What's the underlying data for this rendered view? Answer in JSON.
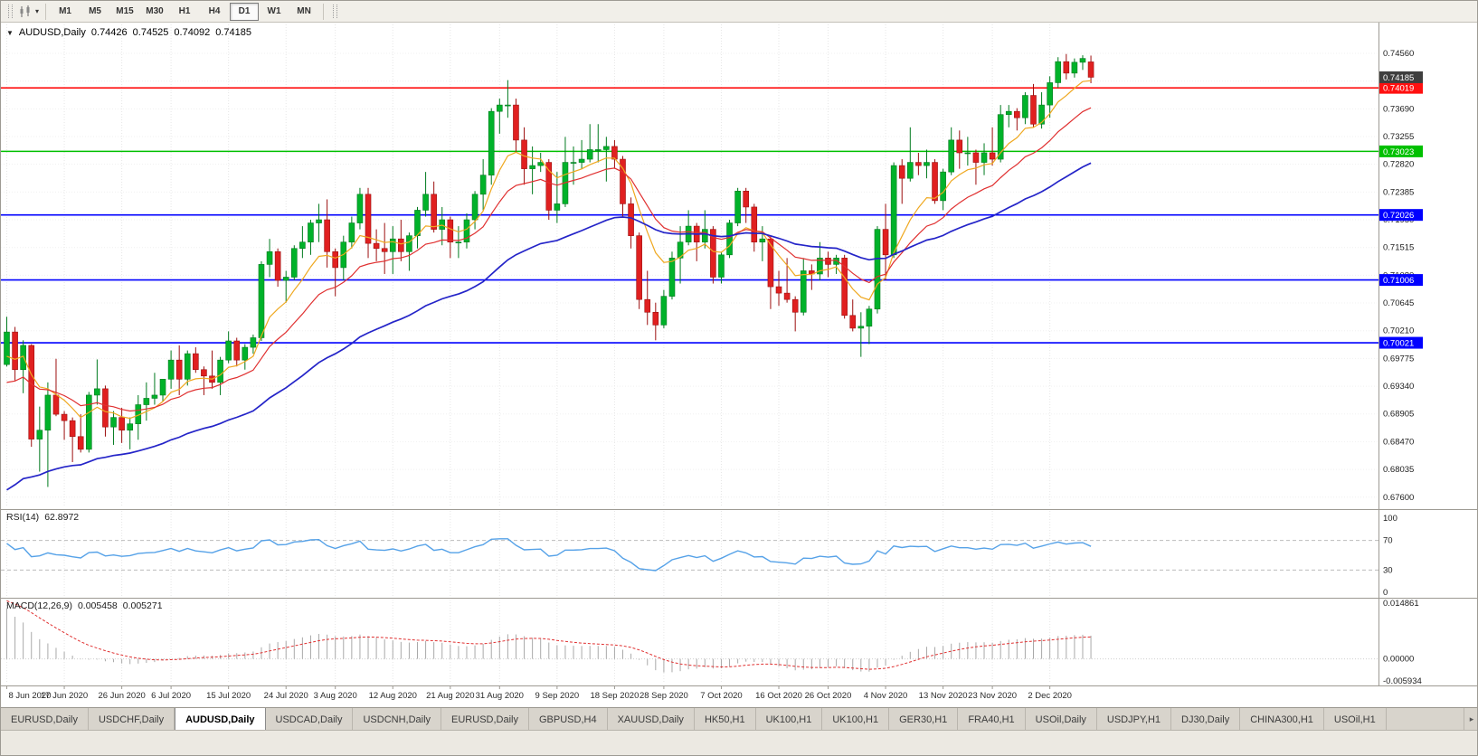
{
  "icons": {
    "collapse": "▼",
    "dropdown": "▾",
    "tab_scroll_right": "▸",
    "chart_type": "candlestick-chart"
  },
  "toolbar": {
    "timeframes": [
      "M1",
      "M5",
      "M15",
      "M30",
      "H1",
      "H4",
      "D1",
      "W1",
      "MN"
    ],
    "active_timeframe": "D1"
  },
  "chart_header": {
    "symbol": "AUDUSD,Daily",
    "open": "0.74426",
    "high": "0.74525",
    "low": "0.74092",
    "close": "0.74185"
  },
  "colors": {
    "bull_fill": "#00b22a",
    "bull_stroke": "#007a1e",
    "bear_fill": "#e02020",
    "bear_stroke": "#9c0f0f",
    "background": "#ffffff",
    "axis_text": "#1c1c1c"
  },
  "chart_data": {
    "type": "candlestick",
    "symbol": "AUDUSD",
    "timeframe": "Daily",
    "y_range": {
      "top": 0.74957,
      "bottom": 0.67469
    },
    "price_ticks": [
      0.7456,
      0.74125,
      0.7369,
      0.73255,
      0.7282,
      0.72385,
      0.7195,
      0.71515,
      0.7108,
      0.70645,
      0.7021,
      0.69775,
      0.6934,
      0.68905,
      0.6847,
      0.68035,
      0.676
    ],
    "x_labels": [
      {
        "label": "8 Jun 2020",
        "index": 0
      },
      {
        "label": "17 Jun 2020",
        "index": 7
      },
      {
        "label": "26 Jun 2020",
        "index": 14
      },
      {
        "label": "6 Jul 2020",
        "index": 20
      },
      {
        "label": "15 Jul 2020",
        "index": 27
      },
      {
        "label": "24 Jul 2020",
        "index": 34
      },
      {
        "label": "3 Aug 2020",
        "index": 40
      },
      {
        "label": "12 Aug 2020",
        "index": 47
      },
      {
        "label": "21 Aug 2020",
        "index": 54
      },
      {
        "label": "31 Aug 2020",
        "index": 60
      },
      {
        "label": "9 Sep 2020",
        "index": 67
      },
      {
        "label": "18 Sep 2020",
        "index": 74
      },
      {
        "label": "28 Sep 2020",
        "index": 80
      },
      {
        "label": "7 Oct 2020",
        "index": 87
      },
      {
        "label": "16 Oct 2020",
        "index": 94
      },
      {
        "label": "26 Oct 2020",
        "index": 100
      },
      {
        "label": "4 Nov 2020",
        "index": 107
      },
      {
        "label": "13 Nov 2020",
        "index": 114
      },
      {
        "label": "23 Nov 2020",
        "index": 120
      },
      {
        "label": "2 Dec 2020",
        "index": 127
      }
    ],
    "candles": [
      [
        0.6968,
        0.7043,
        0.6965,
        0.7019
      ],
      [
        0.7019,
        0.7027,
        0.6943,
        0.696
      ],
      [
        0.696,
        0.7006,
        0.6923,
        0.6998
      ],
      [
        0.6998,
        0.7,
        0.6839,
        0.6851
      ],
      [
        0.6851,
        0.6902,
        0.68,
        0.6865
      ],
      [
        0.6865,
        0.694,
        0.6776,
        0.692
      ],
      [
        0.692,
        0.6977,
        0.6887,
        0.689
      ],
      [
        0.689,
        0.6895,
        0.685,
        0.688
      ],
      [
        0.688,
        0.6885,
        0.6815,
        0.6855
      ],
      [
        0.6855,
        0.689,
        0.683,
        0.6835
      ],
      [
        0.6835,
        0.6925,
        0.683,
        0.692
      ],
      [
        0.692,
        0.6976,
        0.6905,
        0.693
      ],
      [
        0.693,
        0.6935,
        0.6855,
        0.687
      ],
      [
        0.687,
        0.6895,
        0.6842,
        0.6885
      ],
      [
        0.6885,
        0.69,
        0.6845,
        0.6865
      ],
      [
        0.6865,
        0.6885,
        0.6835,
        0.6875
      ],
      [
        0.6875,
        0.692,
        0.685,
        0.6905
      ],
      [
        0.6905,
        0.694,
        0.688,
        0.6915
      ],
      [
        0.6915,
        0.6955,
        0.6905,
        0.692
      ],
      [
        0.692,
        0.6945,
        0.691,
        0.6945
      ],
      [
        0.6945,
        0.699,
        0.693,
        0.6975
      ],
      [
        0.6975,
        0.6998,
        0.692,
        0.6945
      ],
      [
        0.6945,
        0.699,
        0.6935,
        0.6985
      ],
      [
        0.6985,
        0.6995,
        0.6955,
        0.696
      ],
      [
        0.696,
        0.6965,
        0.692,
        0.695
      ],
      [
        0.695,
        0.699,
        0.693,
        0.694
      ],
      [
        0.694,
        0.698,
        0.692,
        0.6975
      ],
      [
        0.6975,
        0.702,
        0.697,
        0.7005
      ],
      [
        0.7005,
        0.701,
        0.6965,
        0.6975
      ],
      [
        0.6975,
        0.7,
        0.696,
        0.6995
      ],
      [
        0.6995,
        0.7015,
        0.6985,
        0.701
      ],
      [
        0.701,
        0.713,
        0.7005,
        0.7125
      ],
      [
        0.7125,
        0.7165,
        0.7105,
        0.7145
      ],
      [
        0.7145,
        0.715,
        0.709,
        0.71
      ],
      [
        0.71,
        0.7115,
        0.7065,
        0.7105
      ],
      [
        0.7105,
        0.7155,
        0.71,
        0.715
      ],
      [
        0.715,
        0.7185,
        0.7135,
        0.716
      ],
      [
        0.716,
        0.7195,
        0.714,
        0.719
      ],
      [
        0.719,
        0.722,
        0.716,
        0.7195
      ],
      [
        0.7195,
        0.7227,
        0.712,
        0.7145
      ],
      [
        0.7145,
        0.715,
        0.7075,
        0.712
      ],
      [
        0.712,
        0.717,
        0.71,
        0.716
      ],
      [
        0.716,
        0.72,
        0.715,
        0.719
      ],
      [
        0.719,
        0.7245,
        0.718,
        0.7235
      ],
      [
        0.7235,
        0.7245,
        0.7135,
        0.7158
      ],
      [
        0.7158,
        0.718,
        0.713,
        0.715
      ],
      [
        0.715,
        0.719,
        0.711,
        0.7145
      ],
      [
        0.7145,
        0.7185,
        0.711,
        0.7165
      ],
      [
        0.7165,
        0.7195,
        0.713,
        0.7145
      ],
      [
        0.7145,
        0.7175,
        0.7115,
        0.717
      ],
      [
        0.717,
        0.7215,
        0.715,
        0.721
      ],
      [
        0.721,
        0.727,
        0.72,
        0.7235
      ],
      [
        0.7235,
        0.7255,
        0.7175,
        0.718
      ],
      [
        0.718,
        0.7215,
        0.7155,
        0.7195
      ],
      [
        0.7195,
        0.72,
        0.7135,
        0.716
      ],
      [
        0.716,
        0.7185,
        0.7135,
        0.716
      ],
      [
        0.716,
        0.7205,
        0.715,
        0.7195
      ],
      [
        0.7195,
        0.724,
        0.718,
        0.7235
      ],
      [
        0.7235,
        0.729,
        0.721,
        0.7265
      ],
      [
        0.7265,
        0.737,
        0.725,
        0.7365
      ],
      [
        0.7365,
        0.7385,
        0.733,
        0.7375
      ],
      [
        0.7375,
        0.7414,
        0.7355,
        0.7375
      ],
      [
        0.7375,
        0.7385,
        0.73,
        0.732
      ],
      [
        0.732,
        0.734,
        0.725,
        0.7275
      ],
      [
        0.7275,
        0.731,
        0.7235,
        0.728
      ],
      [
        0.728,
        0.73,
        0.727,
        0.7285
      ],
      [
        0.7285,
        0.729,
        0.7195,
        0.721
      ],
      [
        0.721,
        0.727,
        0.719,
        0.722
      ],
      [
        0.722,
        0.7325,
        0.7215,
        0.7285
      ],
      [
        0.7285,
        0.731,
        0.725,
        0.7285
      ],
      [
        0.7285,
        0.732,
        0.7275,
        0.729
      ],
      [
        0.729,
        0.7345,
        0.7285,
        0.7305
      ],
      [
        0.7305,
        0.7345,
        0.7285,
        0.7305
      ],
      [
        0.7305,
        0.7325,
        0.7255,
        0.731
      ],
      [
        0.731,
        0.732,
        0.7275,
        0.729
      ],
      [
        0.729,
        0.7295,
        0.72,
        0.722
      ],
      [
        0.722,
        0.723,
        0.715,
        0.717
      ],
      [
        0.717,
        0.7175,
        0.7055,
        0.707
      ],
      [
        0.707,
        0.7115,
        0.703,
        0.705
      ],
      [
        0.705,
        0.7065,
        0.7006,
        0.703
      ],
      [
        0.703,
        0.7085,
        0.7025,
        0.7075
      ],
      [
        0.7075,
        0.7145,
        0.707,
        0.7135
      ],
      [
        0.7135,
        0.7185,
        0.7095,
        0.716
      ],
      [
        0.716,
        0.721,
        0.7155,
        0.7185
      ],
      [
        0.7185,
        0.719,
        0.713,
        0.716
      ],
      [
        0.716,
        0.721,
        0.715,
        0.718
      ],
      [
        0.718,
        0.7185,
        0.7095,
        0.7105
      ],
      [
        0.7105,
        0.7145,
        0.7095,
        0.714
      ],
      [
        0.714,
        0.7195,
        0.7135,
        0.719
      ],
      [
        0.719,
        0.7245,
        0.7185,
        0.724
      ],
      [
        0.724,
        0.7245,
        0.719,
        0.7215
      ],
      [
        0.7215,
        0.722,
        0.7145,
        0.716
      ],
      [
        0.716,
        0.7185,
        0.713,
        0.7165
      ],
      [
        0.7165,
        0.717,
        0.7055,
        0.709
      ],
      [
        0.709,
        0.7115,
        0.706,
        0.708
      ],
      [
        0.708,
        0.7135,
        0.7065,
        0.707
      ],
      [
        0.707,
        0.7075,
        0.702,
        0.705
      ],
      [
        0.705,
        0.7135,
        0.7045,
        0.7115
      ],
      [
        0.7115,
        0.7125,
        0.7085,
        0.711
      ],
      [
        0.711,
        0.716,
        0.71,
        0.7135
      ],
      [
        0.7135,
        0.7145,
        0.7105,
        0.7125
      ],
      [
        0.7125,
        0.714,
        0.711,
        0.7135
      ],
      [
        0.7135,
        0.714,
        0.704,
        0.7045
      ],
      [
        0.7045,
        0.707,
        0.702,
        0.7025
      ],
      [
        0.7025,
        0.705,
        0.698,
        0.7028
      ],
      [
        0.7028,
        0.706,
        0.7,
        0.7055
      ],
      [
        0.7055,
        0.7185,
        0.7048,
        0.718
      ],
      [
        0.718,
        0.722,
        0.71,
        0.714
      ],
      [
        0.714,
        0.7285,
        0.7135,
        0.728
      ],
      [
        0.728,
        0.729,
        0.722,
        0.726
      ],
      [
        0.726,
        0.734,
        0.7255,
        0.7285
      ],
      [
        0.7285,
        0.73,
        0.7265,
        0.728
      ],
      [
        0.728,
        0.7305,
        0.726,
        0.7285
      ],
      [
        0.7285,
        0.729,
        0.722,
        0.7225
      ],
      [
        0.7225,
        0.7275,
        0.721,
        0.727
      ],
      [
        0.727,
        0.734,
        0.7265,
        0.732
      ],
      [
        0.732,
        0.7335,
        0.7275,
        0.73
      ],
      [
        0.73,
        0.7325,
        0.728,
        0.73
      ],
      [
        0.73,
        0.7305,
        0.725,
        0.7285
      ],
      [
        0.7285,
        0.7315,
        0.7265,
        0.73
      ],
      [
        0.73,
        0.734,
        0.728,
        0.729
      ],
      [
        0.729,
        0.7375,
        0.7285,
        0.736
      ],
      [
        0.736,
        0.7375,
        0.734,
        0.7365
      ],
      [
        0.7365,
        0.737,
        0.7335,
        0.7355
      ],
      [
        0.7355,
        0.7395,
        0.7345,
        0.739
      ],
      [
        0.739,
        0.7408,
        0.734,
        0.7345
      ],
      [
        0.7345,
        0.7395,
        0.7338,
        0.7375
      ],
      [
        0.7375,
        0.742,
        0.7355,
        0.741
      ],
      [
        0.741,
        0.745,
        0.7402,
        0.7443
      ],
      [
        0.7443,
        0.7455,
        0.7415,
        0.7425
      ],
      [
        0.7425,
        0.7448,
        0.7418,
        0.7442
      ],
      [
        0.7442,
        0.7453,
        0.743,
        0.7448
      ],
      [
        0.74426,
        0.74525,
        0.74092,
        0.74185
      ]
    ],
    "horizontal_lines": [
      {
        "price": 0.74019,
        "color": "#ff1010",
        "label": "0.74019"
      },
      {
        "price": 0.73023,
        "color": "#00c000",
        "label": "0.73023"
      },
      {
        "price": 0.72026,
        "color": "#0000ff",
        "label": "0.72026"
      },
      {
        "price": 0.71006,
        "color": "#0000ff",
        "label": "0.71006"
      },
      {
        "price": 0.70021,
        "color": "#0000ff",
        "label": "0.70021"
      }
    ],
    "current_price": {
      "value": "0.74185",
      "price": 0.74185,
      "bg": "#3f3f3f"
    },
    "moving_averages": [
      {
        "name": "ma-fast-line",
        "period": 8,
        "seed": 0.697,
        "color": "#efa820",
        "width": 1.2
      },
      {
        "name": "ma-mid-line",
        "period": 17,
        "seed": 0.693,
        "color": "#e03030",
        "width": 1.2
      },
      {
        "name": "ma-slow-line",
        "period": 45,
        "seed": 0.676,
        "color": "#2424c8",
        "width": 1.7
      }
    ],
    "rsi": {
      "name": "RSI(14)",
      "value": "62.8972",
      "period": 14,
      "levels": [
        70,
        30
      ],
      "axis": [
        "100",
        "70",
        "30",
        "0"
      ],
      "color": "#56a2e8"
    },
    "macd": {
      "name": "MACD(12,26,9)",
      "value_main": "0.005458",
      "value_signal": "0.005271",
      "fast": 12,
      "slow": 26,
      "signal": 9,
      "seed_fast": 0.712,
      "seed_slow": 0.6971,
      "seed_signal": 0.0155,
      "axis_top": "0.014861",
      "axis_zero": "0.00000",
      "axis_bottom": "-0.005934",
      "scale_max": 0.014861,
      "scale_min": -0.005934,
      "hist_color": "#a9a9a9",
      "signal_color": "#e03030"
    }
  },
  "bottom_tabs": {
    "active_index": 2,
    "tabs": [
      "EURUSD,Daily",
      "USDCHF,Daily",
      "AUDUSD,Daily",
      "USDCAD,Daily",
      "USDCNH,Daily",
      "EURUSD,Daily",
      "GBPUSD,H4",
      "XAUUSD,Daily",
      "HK50,H1",
      "UK100,H1",
      "UK100,H1",
      "GER30,H1",
      "FRA40,H1",
      "USOil,Daily",
      "USDJPY,H1",
      "DJ30,Daily",
      "CHINA300,H1",
      "USOil,H1"
    ]
  }
}
